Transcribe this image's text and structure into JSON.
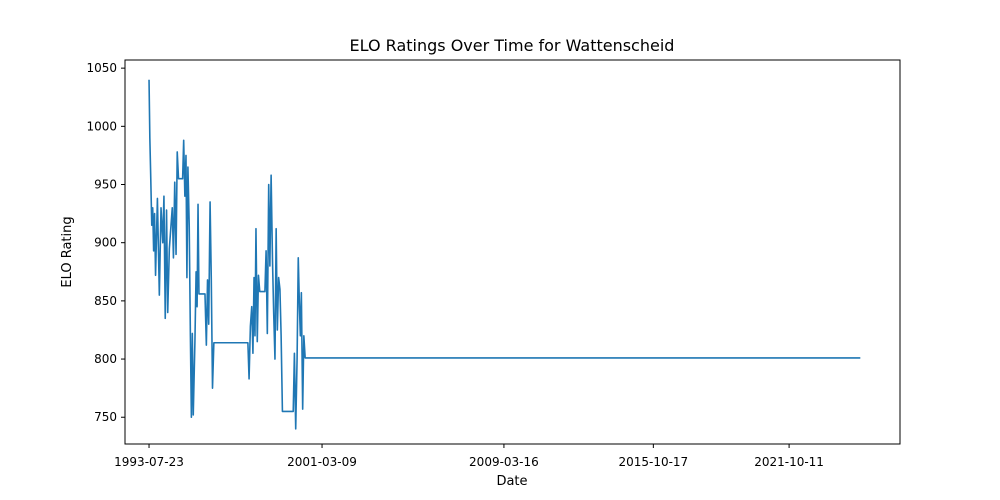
{
  "chart_data": {
    "type": "line",
    "title": "ELO Ratings Over Time for Wattenscheid",
    "xlabel": "Date",
    "ylabel": "ELO Rating",
    "x_ticks": [
      "1993-07-23",
      "2001-03-09",
      "2009-03-16",
      "2015-10-17",
      "2021-10-11"
    ],
    "y_ticks": [
      750,
      800,
      850,
      900,
      950,
      1000,
      1050
    ],
    "xlim": [
      "1992-07-01",
      "2026-09-01"
    ],
    "ylim": [
      727,
      1057
    ],
    "grid": false,
    "series": [
      {
        "color": "#1f77b4",
        "points": [
          [
            "1993-07-23",
            1040
          ],
          [
            "1993-08-05",
            990
          ],
          [
            "1993-08-20",
            955
          ],
          [
            "1993-09-05",
            915
          ],
          [
            "1993-09-20",
            930
          ],
          [
            "1993-10-05",
            893
          ],
          [
            "1993-10-20",
            925
          ],
          [
            "1993-11-05",
            872
          ],
          [
            "1993-11-20",
            905
          ],
          [
            "1993-12-05",
            938
          ],
          [
            "1994-01-05",
            855
          ],
          [
            "1994-02-01",
            930
          ],
          [
            "1994-03-01",
            900
          ],
          [
            "1994-03-20",
            940
          ],
          [
            "1994-04-10",
            835
          ],
          [
            "1994-05-01",
            928
          ],
          [
            "1994-05-20",
            840
          ],
          [
            "1994-06-15",
            895
          ],
          [
            "1994-08-01",
            930
          ],
          [
            "1994-08-20",
            887
          ],
          [
            "1994-09-10",
            952
          ],
          [
            "1994-10-01",
            890
          ],
          [
            "1994-10-20",
            978
          ],
          [
            "1994-11-10",
            955
          ],
          [
            "1995-01-15",
            955
          ],
          [
            "1995-02-01",
            988
          ],
          [
            "1995-02-20",
            940
          ],
          [
            "1995-03-10",
            975
          ],
          [
            "1995-03-25",
            870
          ],
          [
            "1995-04-10",
            965
          ],
          [
            "1995-05-01",
            915
          ],
          [
            "1995-05-20",
            820
          ],
          [
            "1995-06-05",
            750
          ],
          [
            "1995-06-20",
            822
          ],
          [
            "1995-07-05",
            752
          ],
          [
            "1995-08-01",
            815
          ],
          [
            "1995-08-20",
            875
          ],
          [
            "1995-09-05",
            845
          ],
          [
            "1995-09-20",
            933
          ],
          [
            "1995-10-05",
            856
          ],
          [
            "1996-01-10",
            856
          ],
          [
            "1996-02-01",
            812
          ],
          [
            "1996-02-20",
            868
          ],
          [
            "1996-03-10",
            830
          ],
          [
            "1996-04-01",
            935
          ],
          [
            "1996-04-20",
            870
          ],
          [
            "1996-05-10",
            775
          ],
          [
            "1996-06-01",
            814
          ],
          [
            "1997-12-01",
            814
          ],
          [
            "1997-12-20",
            783
          ],
          [
            "1998-01-10",
            828
          ],
          [
            "1998-02-01",
            845
          ],
          [
            "1998-02-20",
            805
          ],
          [
            "1998-03-10",
            870
          ],
          [
            "1998-03-25",
            820
          ],
          [
            "1998-04-10",
            912
          ],
          [
            "1998-05-01",
            815
          ],
          [
            "1998-05-20",
            872
          ],
          [
            "1998-06-10",
            858
          ],
          [
            "1998-09-01",
            858
          ],
          [
            "1998-09-20",
            893
          ],
          [
            "1998-10-10",
            822
          ],
          [
            "1998-11-01",
            950
          ],
          [
            "1998-11-20",
            880
          ],
          [
            "1998-12-10",
            958
          ],
          [
            "1999-01-01",
            885
          ],
          [
            "1999-01-20",
            840
          ],
          [
            "1999-02-10",
            800
          ],
          [
            "1999-03-01",
            912
          ],
          [
            "1999-03-20",
            825
          ],
          [
            "1999-04-10",
            870
          ],
          [
            "1999-05-01",
            860
          ],
          [
            "1999-05-20",
            820
          ],
          [
            "1999-06-10",
            755
          ],
          [
            "1999-12-01",
            755
          ],
          [
            "1999-12-20",
            805
          ],
          [
            "2000-01-10",
            740
          ],
          [
            "2000-02-01",
            800
          ],
          [
            "2000-02-20",
            887
          ],
          [
            "2000-03-10",
            845
          ],
          [
            "2000-03-25",
            820
          ],
          [
            "2000-04-10",
            857
          ],
          [
            "2000-05-01",
            757
          ],
          [
            "2000-05-20",
            820
          ],
          [
            "2000-06-10",
            801
          ],
          [
            "2024-12-01",
            801
          ]
        ]
      }
    ]
  }
}
